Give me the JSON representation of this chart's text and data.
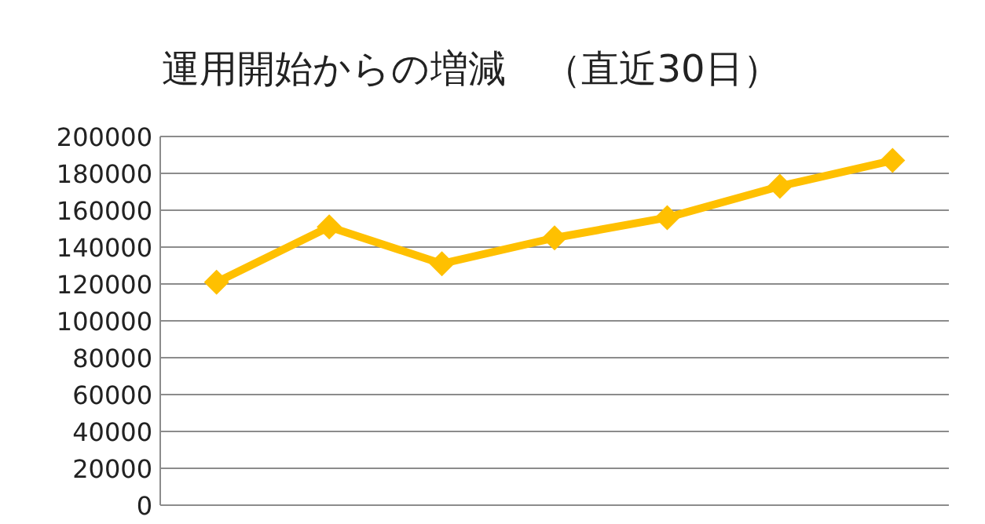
{
  "chart_data": {
    "type": "line",
    "title": "運用開始からの増減　（直近30日）",
    "categories": [
      null,
      null,
      null,
      null,
      null,
      null,
      null
    ],
    "series": [
      {
        "color": "#ffc000",
        "values": [
          121000,
          151000,
          131000,
          145000,
          156000,
          173000,
          187000
        ]
      }
    ],
    "ylim": [
      0,
      200000
    ],
    "yticks": [
      0,
      20000,
      40000,
      60000,
      80000,
      100000,
      120000,
      140000,
      160000,
      180000,
      200000
    ],
    "grid": "y",
    "marker": "diamond",
    "line_style": "solid"
  }
}
